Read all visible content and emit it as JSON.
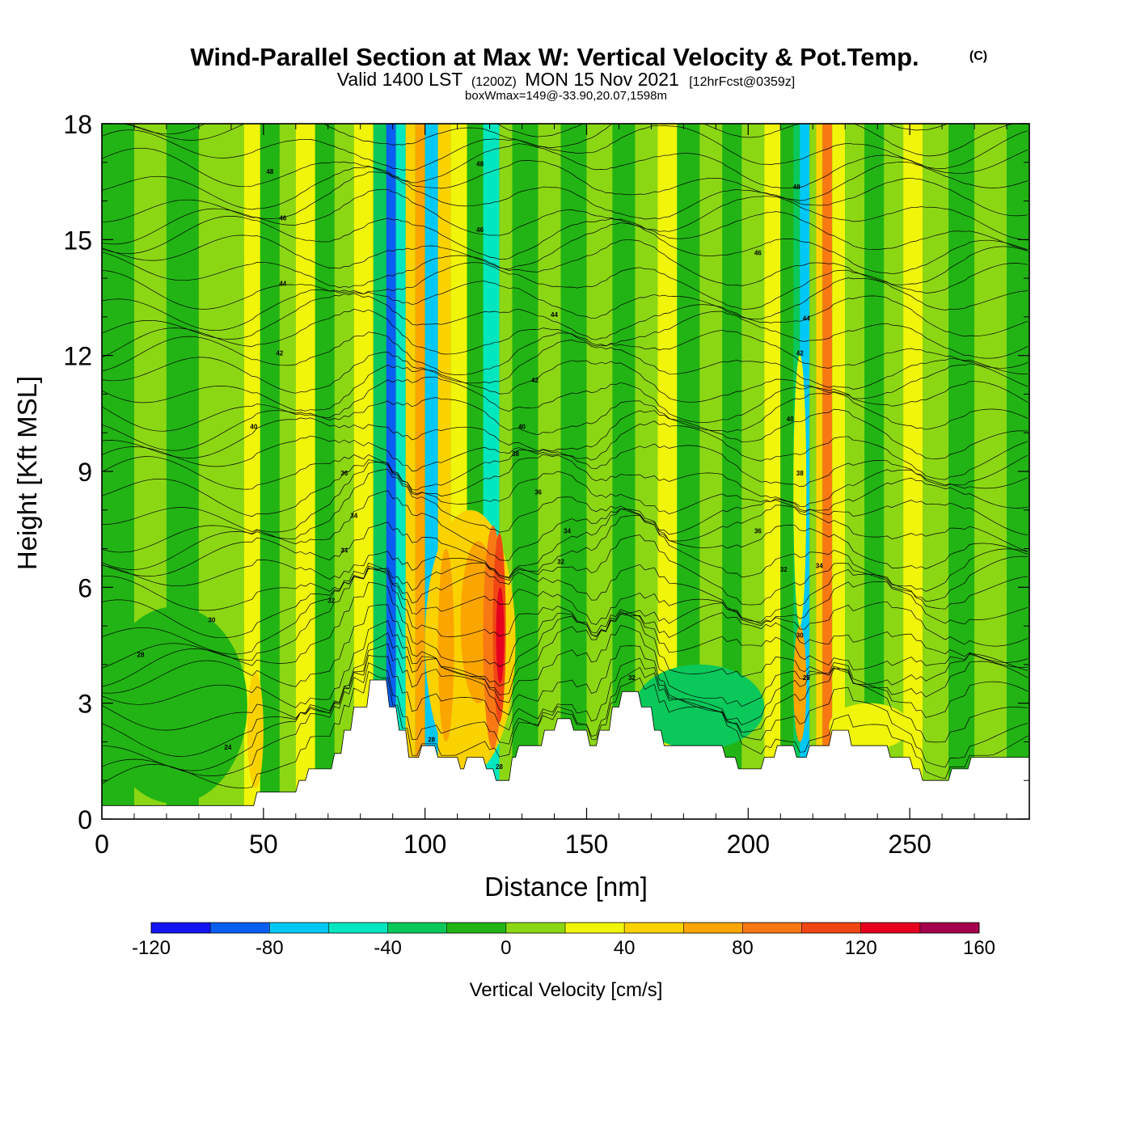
{
  "chart_data": {
    "type": "heatmap",
    "title": "Wind-Parallel Section at Max W: Vertical Velocity & Pot.Temp.",
    "title_mark": "(C)",
    "subtitle": {
      "lead": "Valid 1400 LST",
      "utc": "(1200Z)",
      "date": "MON 15 Nov 2021",
      "forecast": "[12hrFcst@0359z]"
    },
    "box_info": "boxWmax=149@-33.90,20.07,1598m",
    "xlabel": "Distance [nm]",
    "ylabel": "Height [Kft MSL]",
    "xlim": [
      0,
      287
    ],
    "ylim": [
      0,
      18
    ],
    "x_ticks": [
      0,
      50,
      100,
      150,
      200,
      250
    ],
    "y_ticks": [
      0,
      3,
      6,
      9,
      12,
      15,
      18
    ],
    "colorbar": {
      "label": "Vertical Velocity [cm/s]",
      "levels": [
        -120,
        -100,
        -80,
        -60,
        -40,
        -20,
        0,
        20,
        40,
        60,
        80,
        100,
        120,
        140,
        160
      ],
      "tick_labels": [
        "-120",
        "-80",
        "-40",
        "0",
        "40",
        "80",
        "120",
        "160"
      ],
      "tick_values": [
        -120,
        -80,
        -40,
        0,
        40,
        80,
        120,
        160
      ],
      "colors": [
        "#1414f0",
        "#0a5ff0",
        "#00c8f5",
        "#00e6be",
        "#0ac85a",
        "#22b414",
        "#8cd714",
        "#f0f50a",
        "#fad200",
        "#fba500",
        "#f87814",
        "#f04614",
        "#e6001e",
        "#a5004b"
      ]
    },
    "velocity_columns": [
      {
        "x0": 0,
        "x1": 10,
        "value": -10
      },
      {
        "x0": 10,
        "x1": 20,
        "value": 10
      },
      {
        "x0": 20,
        "x1": 30,
        "value": -10
      },
      {
        "x0": 30,
        "x1": 44,
        "value": 5
      },
      {
        "x0": 44,
        "x1": 49,
        "value": 30
      },
      {
        "x0": 49,
        "x1": 55,
        "value": -10
      },
      {
        "x0": 55,
        "x1": 60,
        "value": 10
      },
      {
        "x0": 60,
        "x1": 66,
        "value": 30
      },
      {
        "x0": 66,
        "x1": 72,
        "value": -10
      },
      {
        "x0": 72,
        "x1": 78,
        "value": 10
      },
      {
        "x0": 78,
        "x1": 84,
        "value": 30
      },
      {
        "x0": 84,
        "x1": 88,
        "value": -30
      },
      {
        "x0": 88,
        "x1": 91,
        "value": -90
      },
      {
        "x0": 91,
        "x1": 94,
        "value": -50
      },
      {
        "x0": 94,
        "x1": 97,
        "value": 50
      },
      {
        "x0": 97,
        "x1": 100,
        "value": 70
      },
      {
        "x0": 100,
        "x1": 104,
        "value": -70
      },
      {
        "x0": 104,
        "x1": 108,
        "value": 50
      },
      {
        "x0": 108,
        "x1": 113,
        "value": 30
      },
      {
        "x0": 113,
        "x1": 118,
        "value": -10
      },
      {
        "x0": 118,
        "x1": 123,
        "value": -50
      },
      {
        "x0": 123,
        "x1": 127,
        "value": 10
      },
      {
        "x0": 127,
        "x1": 135,
        "value": -10
      },
      {
        "x0": 135,
        "x1": 142,
        "value": 10
      },
      {
        "x0": 142,
        "x1": 150,
        "value": -10
      },
      {
        "x0": 150,
        "x1": 158,
        "value": 10
      },
      {
        "x0": 158,
        "x1": 165,
        "value": -10
      },
      {
        "x0": 165,
        "x1": 172,
        "value": 10
      },
      {
        "x0": 172,
        "x1": 178,
        "value": 30
      },
      {
        "x0": 178,
        "x1": 185,
        "value": -10
      },
      {
        "x0": 185,
        "x1": 192,
        "value": 10
      },
      {
        "x0": 192,
        "x1": 198,
        "value": -10
      },
      {
        "x0": 198,
        "x1": 205,
        "value": 10
      },
      {
        "x0": 205,
        "x1": 210,
        "value": 30
      },
      {
        "x0": 210,
        "x1": 214,
        "value": -10
      },
      {
        "x0": 214,
        "x1": 216,
        "value": -30
      },
      {
        "x0": 216,
        "x1": 219,
        "value": -70
      },
      {
        "x0": 219,
        "x1": 221,
        "value": 10
      },
      {
        "x0": 221,
        "x1": 223,
        "value": 50
      },
      {
        "x0": 223,
        "x1": 226,
        "value": 90
      },
      {
        "x0": 226,
        "x1": 230,
        "value": 30
      },
      {
        "x0": 230,
        "x1": 236,
        "value": 10
      },
      {
        "x0": 236,
        "x1": 242,
        "value": -10
      },
      {
        "x0": 242,
        "x1": 248,
        "value": 10
      },
      {
        "x0": 248,
        "x1": 254,
        "value": 30
      },
      {
        "x0": 254,
        "x1": 262,
        "value": 10
      },
      {
        "x0": 262,
        "x1": 270,
        "value": -10
      },
      {
        "x0": 270,
        "x1": 280,
        "value": 10
      },
      {
        "x0": 280,
        "x1": 287,
        "value": -10
      }
    ],
    "velocity_blobs": [
      {
        "x0": 100,
        "x1": 128,
        "y0": 1.2,
        "y1": 8.0,
        "value": 50
      },
      {
        "x0": 104,
        "x1": 109,
        "y0": 2.0,
        "y1": 7.0,
        "value": 70
      },
      {
        "x0": 111,
        "x1": 122,
        "y0": 3.0,
        "y1": 7.2,
        "value": 70
      },
      {
        "x0": 118,
        "x1": 124,
        "y0": 1.8,
        "y1": 7.6,
        "value": 90
      },
      {
        "x0": 121,
        "x1": 125,
        "y0": 2.5,
        "y1": 7.4,
        "value": 110
      },
      {
        "x0": 122,
        "x1": 124.5,
        "y0": 3.5,
        "y1": 6.0,
        "value": 130
      },
      {
        "x0": 0,
        "x1": 45,
        "y0": 0.4,
        "y1": 5.5,
        "value": -10
      },
      {
        "x0": 165,
        "x1": 205,
        "y0": 1.8,
        "y1": 4.0,
        "value": -30
      },
      {
        "x0": 45,
        "x1": 50,
        "y0": 0.8,
        "y1": 3.8,
        "value": 50
      },
      {
        "x0": 214,
        "x1": 218,
        "y0": 2.0,
        "y1": 5.0,
        "value": 70
      },
      {
        "x0": 225,
        "x1": 250,
        "y0": 1.8,
        "y1": 3.0,
        "value": 30
      },
      {
        "x0": 214,
        "x1": 218,
        "y0": 5.0,
        "y1": 12.0,
        "value": 30
      }
    ],
    "terrain": [
      [
        0,
        0.35
      ],
      [
        47,
        0.35
      ],
      [
        48,
        0.7
      ],
      [
        60,
        0.7
      ],
      [
        61,
        1.0
      ],
      [
        63,
        1.0
      ],
      [
        64,
        1.3
      ],
      [
        71,
        1.3
      ],
      [
        72,
        1.7
      ],
      [
        74,
        1.7
      ],
      [
        75,
        2.3
      ],
      [
        77,
        2.3
      ],
      [
        78,
        2.9
      ],
      [
        82,
        2.9
      ],
      [
        83,
        3.6
      ],
      [
        88,
        3.6
      ],
      [
        89,
        2.9
      ],
      [
        91,
        2.9
      ],
      [
        92,
        2.3
      ],
      [
        94,
        2.3
      ],
      [
        95,
        1.6
      ],
      [
        98,
        1.6
      ],
      [
        99,
        1.9
      ],
      [
        103,
        1.9
      ],
      [
        104,
        1.6
      ],
      [
        110,
        1.6
      ],
      [
        111,
        1.3
      ],
      [
        112,
        1.3
      ],
      [
        113,
        1.6
      ],
      [
        118,
        1.6
      ],
      [
        119,
        1.3
      ],
      [
        121,
        1.3
      ],
      [
        122,
        1.0
      ],
      [
        126,
        1.0
      ],
      [
        127,
        1.6
      ],
      [
        128,
        1.6
      ],
      [
        129,
        1.9
      ],
      [
        136,
        1.9
      ],
      [
        137,
        2.3
      ],
      [
        140,
        2.3
      ],
      [
        141,
        2.6
      ],
      [
        145,
        2.6
      ],
      [
        146,
        2.3
      ],
      [
        150,
        2.3
      ],
      [
        151,
        1.9
      ],
      [
        153,
        1.9
      ],
      [
        154,
        2.3
      ],
      [
        157,
        2.3
      ],
      [
        158,
        2.9
      ],
      [
        160,
        2.9
      ],
      [
        161,
        3.3
      ],
      [
        166,
        3.3
      ],
      [
        167,
        2.9
      ],
      [
        170,
        2.9
      ],
      [
        171,
        2.3
      ],
      [
        173,
        2.3
      ],
      [
        174,
        1.9
      ],
      [
        192,
        1.9
      ],
      [
        193,
        1.6
      ],
      [
        196,
        1.6
      ],
      [
        197,
        1.3
      ],
      [
        204,
        1.3
      ],
      [
        205,
        1.6
      ],
      [
        208,
        1.6
      ],
      [
        209,
        1.9
      ],
      [
        214,
        1.9
      ],
      [
        215,
        1.6
      ],
      [
        218,
        1.6
      ],
      [
        219,
        1.9
      ],
      [
        225,
        1.9
      ],
      [
        226,
        2.3
      ],
      [
        231,
        2.3
      ],
      [
        232,
        1.9
      ],
      [
        243,
        1.9
      ],
      [
        244,
        1.6
      ],
      [
        250,
        1.6
      ],
      [
        251,
        1.3
      ],
      [
        253,
        1.3
      ],
      [
        254,
        1.0
      ],
      [
        262,
        1.0
      ],
      [
        263,
        1.3
      ],
      [
        268,
        1.3
      ],
      [
        269,
        1.6
      ],
      [
        287,
        1.6
      ]
    ],
    "theta_contour_levels": [
      24,
      26,
      28,
      30,
      32,
      34,
      36,
      38,
      40,
      42,
      44,
      46,
      48
    ],
    "theta_contour_labels": [
      {
        "text": "28",
        "x": 12,
        "y": 4.2
      },
      {
        "text": "30",
        "x": 34,
        "y": 5.1
      },
      {
        "text": "24",
        "x": 39,
        "y": 1.8
      },
      {
        "text": "32",
        "x": 71,
        "y": 5.6
      },
      {
        "text": "34",
        "x": 75,
        "y": 6.9
      },
      {
        "text": "34",
        "x": 78,
        "y": 7.8
      },
      {
        "text": "36",
        "x": 75,
        "y": 8.9
      },
      {
        "text": "40",
        "x": 47,
        "y": 10.1
      },
      {
        "text": "42",
        "x": 55,
        "y": 12.0
      },
      {
        "text": "44",
        "x": 56,
        "y": 13.8
      },
      {
        "text": "46",
        "x": 56,
        "y": 15.5
      },
      {
        "text": "48",
        "x": 52,
        "y": 16.7
      },
      {
        "text": "48",
        "x": 117,
        "y": 16.9
      },
      {
        "text": "46",
        "x": 117,
        "y": 15.2
      },
      {
        "text": "44",
        "x": 140,
        "y": 13.0
      },
      {
        "text": "42",
        "x": 134,
        "y": 11.3
      },
      {
        "text": "40",
        "x": 130,
        "y": 10.1
      },
      {
        "text": "38",
        "x": 128,
        "y": 9.4
      },
      {
        "text": "36",
        "x": 135,
        "y": 8.4
      },
      {
        "text": "34",
        "x": 144,
        "y": 7.4
      },
      {
        "text": "32",
        "x": 142,
        "y": 6.6
      },
      {
        "text": "28",
        "x": 102,
        "y": 2.0
      },
      {
        "text": "28",
        "x": 123,
        "y": 1.3
      },
      {
        "text": "32",
        "x": 164,
        "y": 3.6
      },
      {
        "text": "46",
        "x": 203,
        "y": 14.6
      },
      {
        "text": "48",
        "x": 215,
        "y": 16.3
      },
      {
        "text": "44",
        "x": 218,
        "y": 12.9
      },
      {
        "text": "42",
        "x": 216,
        "y": 12.0
      },
      {
        "text": "40",
        "x": 213,
        "y": 10.3
      },
      {
        "text": "38",
        "x": 216,
        "y": 8.9
      },
      {
        "text": "36",
        "x": 203,
        "y": 7.4
      },
      {
        "text": "32",
        "x": 211,
        "y": 6.4
      },
      {
        "text": "34",
        "x": 222,
        "y": 6.5
      },
      {
        "text": "30",
        "x": 216,
        "y": 4.7
      },
      {
        "text": "28",
        "x": 218,
        "y": 3.6
      }
    ]
  }
}
